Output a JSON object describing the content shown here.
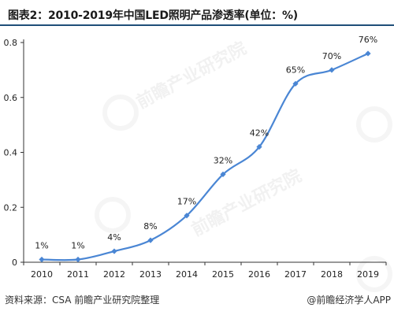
{
  "header": {
    "title": "图表2：2010-2019年中国LED照明产品渗透率(单位：%)"
  },
  "footer": {
    "source": "资料来源：CSA 前瞻产业研究院整理",
    "credit": "@前瞻经济学人APP"
  },
  "watermark": {
    "text": "前瞻产业研究院"
  },
  "colors": {
    "line": "#4a86d4",
    "marker": "#4a86d4",
    "title_rule": "#1f4e79",
    "axis": "#333333"
  },
  "chart_data": {
    "type": "line",
    "title": "图表2：2010-2019年中国LED照明产品渗透率(单位：%)",
    "categories": [
      "2010",
      "2011",
      "2012",
      "2013",
      "2014",
      "2015",
      "2016",
      "2017",
      "2018",
      "2019"
    ],
    "values": [
      0.01,
      0.01,
      0.04,
      0.08,
      0.17,
      0.32,
      0.42,
      0.65,
      0.7,
      0.76
    ],
    "data_labels": [
      "1%",
      "1%",
      "4%",
      "8%",
      "17%",
      "32%",
      "42%",
      "65%",
      "70%",
      "76%"
    ],
    "ylim": [
      0,
      0.8
    ],
    "yticks": [
      0,
      0.2,
      0.4,
      0.6,
      0.8
    ],
    "ytick_labels": [
      "0",
      "0.2",
      "0.4",
      "0.6",
      "0.8"
    ],
    "grid": false,
    "smooth": true,
    "marker": "diamond"
  }
}
